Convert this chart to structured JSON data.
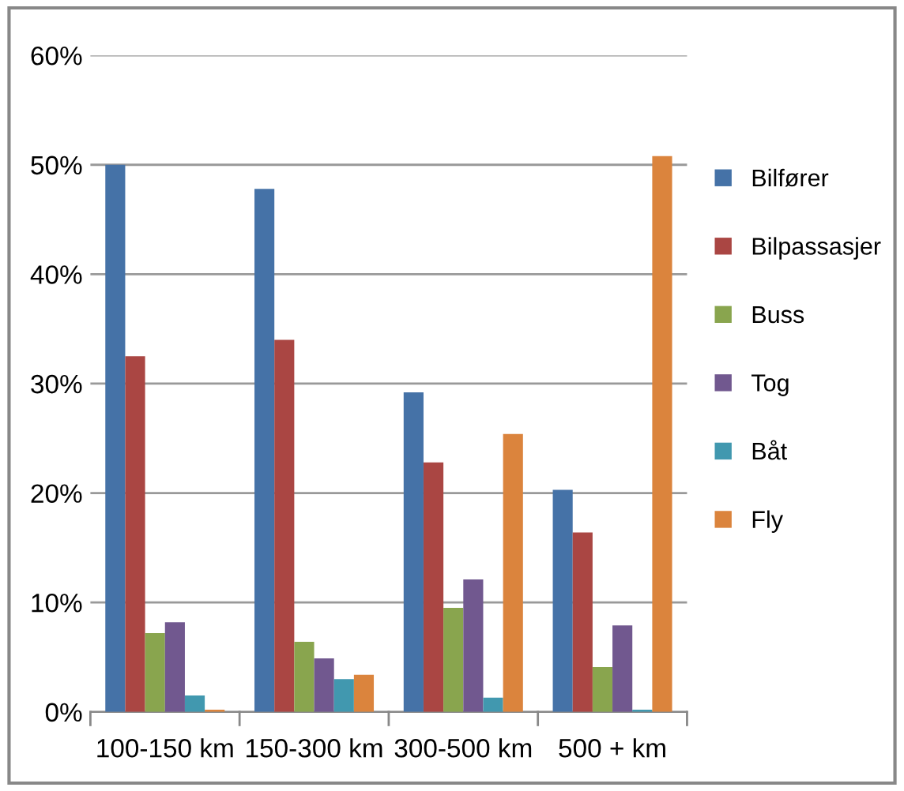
{
  "chart_data": {
    "type": "bar",
    "categories": [
      "100-150 km",
      "150-300 km",
      "300-500 km",
      "500 + km"
    ],
    "series": [
      {
        "name": "Bilfører",
        "color": "#4572a7",
        "values": [
          50.0,
          47.8,
          29.2,
          20.3
        ]
      },
      {
        "name": "Bilpassasjer",
        "color": "#aa4643",
        "values": [
          32.5,
          34.0,
          22.8,
          16.4
        ]
      },
      {
        "name": "Buss",
        "color": "#89a54e",
        "values": [
          7.2,
          6.4,
          9.5,
          4.1
        ]
      },
      {
        "name": "Tog",
        "color": "#71588f",
        "values": [
          8.2,
          4.9,
          12.1,
          7.9
        ]
      },
      {
        "name": "Båt",
        "color": "#4198af",
        "values": [
          1.5,
          3.0,
          1.3,
          0.2
        ]
      },
      {
        "name": "Fly",
        "color": "#db843d",
        "values": [
          0.2,
          3.4,
          25.4,
          50.8
        ]
      }
    ],
    "ylim": [
      0,
      60
    ],
    "yticks": [
      {
        "value": 0,
        "label": "0%"
      },
      {
        "value": 10,
        "label": "10%"
      },
      {
        "value": 20,
        "label": "20%"
      },
      {
        "value": 30,
        "label": "30%"
      },
      {
        "value": 40,
        "label": "40%"
      },
      {
        "value": 50,
        "label": "50%"
      },
      {
        "value": 60,
        "label": "60%"
      }
    ],
    "grid": "y",
    "legend": "right"
  }
}
